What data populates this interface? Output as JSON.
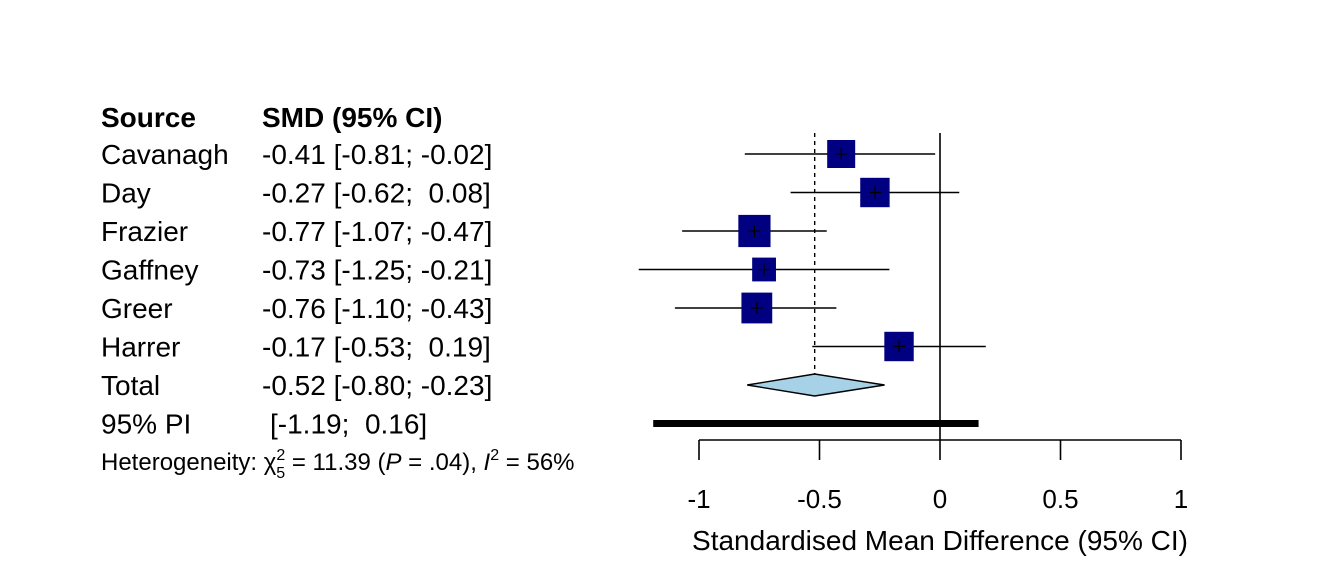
{
  "chart_data": {
    "type": "forest",
    "columns": {
      "source": "Source",
      "smd": "SMD (95% CI)"
    },
    "studies": [
      {
        "source": "Cavanagh",
        "smd": -0.41,
        "lower": -0.81,
        "upper": -0.02,
        "label": "-0.41 [-0.81; -0.02]",
        "weight": 1.0
      },
      {
        "source": "Day",
        "smd": -0.27,
        "lower": -0.62,
        "upper": 0.08,
        "label": "-0.27 [-0.62;  0.08]",
        "weight": 1.05
      },
      {
        "source": "Frazier",
        "smd": -0.77,
        "lower": -1.07,
        "upper": -0.47,
        "label": "-0.77 [-1.07; -0.47]",
        "weight": 1.15
      },
      {
        "source": "Gaffney",
        "smd": -0.73,
        "lower": -1.25,
        "upper": -0.21,
        "label": "-0.73 [-1.25; -0.21]",
        "weight": 0.85
      },
      {
        "source": "Greer",
        "smd": -0.76,
        "lower": -1.1,
        "upper": -0.43,
        "label": "-0.76 [-1.10; -0.43]",
        "weight": 1.1
      },
      {
        "source": "Harrer",
        "smd": -0.17,
        "lower": -0.53,
        "upper": 0.19,
        "label": "-0.17 [-0.53;  0.19]",
        "weight": 1.05
      }
    ],
    "total": {
      "source": "Total",
      "smd": -0.52,
      "lower": -0.8,
      "upper": -0.23,
      "label": "-0.52 [-0.80; -0.23]"
    },
    "prediction_interval": {
      "source": "95% PI",
      "lower": -1.19,
      "upper": 0.16,
      "label": "[-1.19;  0.16]"
    },
    "heterogeneity": {
      "prefix": "Heterogeneity: ",
      "chi": "χ",
      "chi_sup": "2",
      "chi_sub": "5",
      "chi_value": " = 11.39 (",
      "p_letter": "P",
      "p_value": " = .04), ",
      "i_letter": "I",
      "i_sup": "2",
      "i_value": " = 56%"
    },
    "xaxis": {
      "label": "Standardised Mean Difference (95% CI)",
      "ticks": [
        -1,
        -0.5,
        0,
        0.5,
        1
      ],
      "tick_labels": [
        "-1",
        "-0.5",
        "0",
        "0.5",
        "1"
      ],
      "range": [
        -1,
        1
      ]
    },
    "colors": {
      "square": "#000080",
      "diamond": "#a6d1e6",
      "line": "#000000"
    }
  }
}
